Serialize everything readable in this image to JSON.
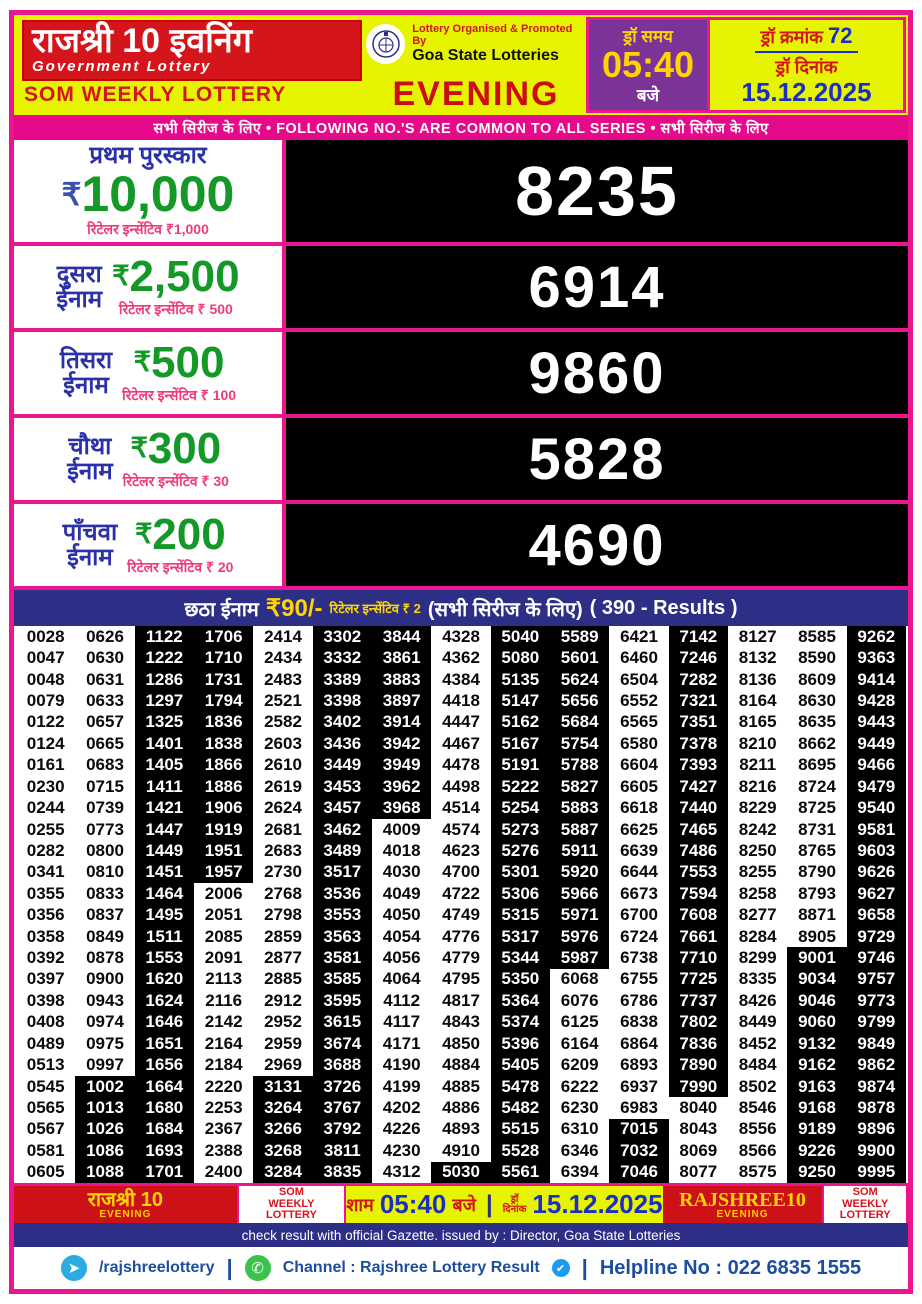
{
  "colors": {
    "frame_pink": "#ec1590",
    "header_yellow": "#e7f400",
    "brand_red": "#d4151c",
    "navy": "#2d2f86",
    "purple": "#7b3397",
    "amount_green": "#149929",
    "label_blue": "#2b31a8",
    "incentive_pink": "#f03a7d",
    "date_blue": "#1b2fc2"
  },
  "header": {
    "title": "राजश्री 10 इवनिंग",
    "subtitle": "Government Lottery",
    "weekly": "SOM WEEKLY LOTTERY",
    "organised_by": "Lottery Organised & Promoted By",
    "organiser": "Goa State Lotteries",
    "session": "EVENING",
    "draw_time_label": "ड्रॉ समय",
    "draw_time": "05:40",
    "draw_time_suffix": "बजे",
    "draw_no_label": "ड्रॉ क्रमांक",
    "draw_no": "72",
    "draw_date_label": "ड्रॉ दिनांक",
    "draw_date": "15.12.2025"
  },
  "series_banner": "सभी सिरीज के लिए  •  FOLLOWING NO.'S ARE COMMON TO ALL SERIES  • सभी सिरीज के लिए",
  "prizes": [
    {
      "label": "प्रथम पुरस्कार",
      "amount": "10,000",
      "incentive": "रिटेलर इन्सेंटिव ₹1,000",
      "number": "8235"
    },
    {
      "label": "दुसरा",
      "label2": "ईनाम",
      "amount": "2,500",
      "incentive": "रिटेलर इन्सेंटिव ₹ 500",
      "number": "6914"
    },
    {
      "label": "तिसरा",
      "label2": "ईनाम",
      "amount": "500",
      "incentive": "रिटेलर इन्सेंटिव ₹ 100",
      "number": "9860"
    },
    {
      "label": "चौथा",
      "label2": "ईनाम",
      "amount": "300",
      "incentive": "रिटेलर इन्सेंटिव ₹ 30",
      "number": "5828"
    },
    {
      "label": "पाँचवा",
      "label2": "ईनाम",
      "amount": "200",
      "incentive": "रिटेलर इन्सेंटिव ₹ 20",
      "number": "4690"
    }
  ],
  "rupee_sign": "₹",
  "sixth_prize": {
    "label": "छठा ईनाम",
    "amount": "₹90/-",
    "incentive": "रिटेलर इन्सेंटिव ₹ 2",
    "series_note": "(सभी सिरीज के लिए)",
    "results_note": "( 390 - Results )"
  },
  "results": {
    "count": 390,
    "rows": [
      [
        "0028",
        "0626",
        "1122",
        "1706",
        "2414",
        "3302",
        "3844",
        "4328",
        "5040",
        "5589",
        "6421",
        "7142",
        "8127",
        "8585",
        "9262"
      ],
      [
        "0047",
        "0630",
        "1222",
        "1710",
        "2434",
        "3332",
        "3861",
        "4362",
        "5080",
        "5601",
        "6460",
        "7246",
        "8132",
        "8590",
        "9363"
      ],
      [
        "0048",
        "0631",
        "1286",
        "1731",
        "2483",
        "3389",
        "3883",
        "4384",
        "5135",
        "5624",
        "6504",
        "7282",
        "8136",
        "8609",
        "9414"
      ],
      [
        "0079",
        "0633",
        "1297",
        "1794",
        "2521",
        "3398",
        "3897",
        "4418",
        "5147",
        "5656",
        "6552",
        "7321",
        "8164",
        "8630",
        "9428"
      ],
      [
        "0122",
        "0657",
        "1325",
        "1836",
        "2582",
        "3402",
        "3914",
        "4447",
        "5162",
        "5684",
        "6565",
        "7351",
        "8165",
        "8635",
        "9443"
      ],
      [
        "0124",
        "0665",
        "1401",
        "1838",
        "2603",
        "3436",
        "3942",
        "4467",
        "5167",
        "5754",
        "6580",
        "7378",
        "8210",
        "8662",
        "9449"
      ],
      [
        "0161",
        "0683",
        "1405",
        "1866",
        "2610",
        "3449",
        "3949",
        "4478",
        "5191",
        "5788",
        "6604",
        "7393",
        "8211",
        "8695",
        "9466"
      ],
      [
        "0230",
        "0715",
        "1411",
        "1886",
        "2619",
        "3453",
        "3962",
        "4498",
        "5222",
        "5827",
        "6605",
        "7427",
        "8216",
        "8724",
        "9479"
      ],
      [
        "0244",
        "0739",
        "1421",
        "1906",
        "2624",
        "3457",
        "3968",
        "4514",
        "5254",
        "5883",
        "6618",
        "7440",
        "8229",
        "8725",
        "9540"
      ],
      [
        "0255",
        "0773",
        "1447",
        "1919",
        "2681",
        "3462",
        "4009",
        "4574",
        "5273",
        "5887",
        "6625",
        "7465",
        "8242",
        "8731",
        "9581"
      ],
      [
        "0282",
        "0800",
        "1449",
        "1951",
        "2683",
        "3489",
        "4018",
        "4623",
        "5276",
        "5911",
        "6639",
        "7486",
        "8250",
        "8765",
        "9603"
      ],
      [
        "0341",
        "0810",
        "1451",
        "1957",
        "2730",
        "3517",
        "4030",
        "4700",
        "5301",
        "5920",
        "6644",
        "7553",
        "8255",
        "8790",
        "9626"
      ],
      [
        "0355",
        "0833",
        "1464",
        "2006",
        "2768",
        "3536",
        "4049",
        "4722",
        "5306",
        "5966",
        "6673",
        "7594",
        "8258",
        "8793",
        "9627"
      ],
      [
        "0356",
        "0837",
        "1495",
        "2051",
        "2798",
        "3553",
        "4050",
        "4749",
        "5315",
        "5971",
        "6700",
        "7608",
        "8277",
        "8871",
        "9658"
      ],
      [
        "0358",
        "0849",
        "1511",
        "2085",
        "2859",
        "3563",
        "4054",
        "4776",
        "5317",
        "5976",
        "6724",
        "7661",
        "8284",
        "8905",
        "9729"
      ],
      [
        "0392",
        "0878",
        "1553",
        "2091",
        "2877",
        "3581",
        "4056",
        "4779",
        "5344",
        "5987",
        "6738",
        "7710",
        "8299",
        "9001",
        "9746"
      ],
      [
        "0397",
        "0900",
        "1620",
        "2113",
        "2885",
        "3585",
        "4064",
        "4795",
        "5350",
        "6068",
        "6755",
        "7725",
        "8335",
        "9034",
        "9757"
      ],
      [
        "0398",
        "0943",
        "1624",
        "2116",
        "2912",
        "3595",
        "4112",
        "4817",
        "5364",
        "6076",
        "6786",
        "7737",
        "8426",
        "9046",
        "9773"
      ],
      [
        "0408",
        "0974",
        "1646",
        "2142",
        "2952",
        "3615",
        "4117",
        "4843",
        "5374",
        "6125",
        "6838",
        "7802",
        "8449",
        "9060",
        "9799"
      ],
      [
        "0489",
        "0975",
        "1651",
        "2164",
        "2959",
        "3674",
        "4171",
        "4850",
        "5396",
        "6164",
        "6864",
        "7836",
        "8452",
        "9132",
        "9849"
      ],
      [
        "0513",
        "0997",
        "1656",
        "2184",
        "2969",
        "3688",
        "4190",
        "4884",
        "5405",
        "6209",
        "6893",
        "7890",
        "8484",
        "9162",
        "9862"
      ],
      [
        "0545",
        "1002",
        "1664",
        "2220",
        "3131",
        "3726",
        "4199",
        "4885",
        "5478",
        "6222",
        "6937",
        "7990",
        "8502",
        "9163",
        "9874"
      ],
      [
        "0565",
        "1013",
        "1680",
        "2253",
        "3264",
        "3767",
        "4202",
        "4886",
        "5482",
        "6230",
        "6983",
        "8040",
        "8546",
        "9168",
        "9878"
      ],
      [
        "0567",
        "1026",
        "1684",
        "2367",
        "3266",
        "3792",
        "4226",
        "4893",
        "5515",
        "6310",
        "7015",
        "8043",
        "8556",
        "9189",
        "9896"
      ],
      [
        "0581",
        "1086",
        "1693",
        "2388",
        "3268",
        "3811",
        "4230",
        "4910",
        "5528",
        "6346",
        "7032",
        "8069",
        "8566",
        "9226",
        "9900"
      ],
      [
        "0605",
        "1088",
        "1701",
        "2400",
        "3284",
        "3835",
        "4312",
        "5030",
        "5561",
        "6394",
        "7046",
        "8077",
        "8575",
        "9250",
        "9995"
      ]
    ]
  },
  "footer": {
    "brand_left": "राजश्री 10",
    "brand_left_sub": "EVENING",
    "weekly_1": "SOM",
    "weekly_2": "WEEKLY",
    "weekly_3": "LOTTERY",
    "time_prefix": "शाम",
    "time": "05:40",
    "time_suffix": "बजे",
    "separator": "|",
    "date_label_1": "ड्रॉ",
    "date_label_2": "दिनांक",
    "date": "15.12.2025",
    "brand_right": "RAJSHREE10",
    "brand_right_sub": "EVENING",
    "gazette": "check result with official Gazette. issued by : Director, Goa State Lotteries",
    "telegram_handle": "/rajshreelottery",
    "channel": "Channel : Rajshree Lottery Result",
    "helpline": "Helpline No : 022 6835 1555"
  }
}
